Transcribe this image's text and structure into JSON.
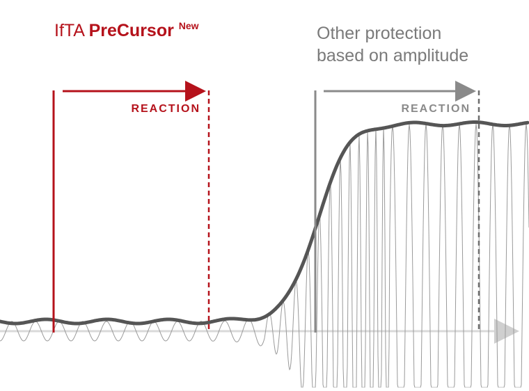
{
  "header_left": {
    "brand": "IfTA",
    "product": "PreCursor",
    "tag": "New"
  },
  "header_right": {
    "line1": "Other protection",
    "line2": "based on amplitude"
  },
  "reaction_left": {
    "label": "REACTION"
  },
  "reaction_right": {
    "label": "REACTION"
  },
  "colors": {
    "accent_red": "#b5121b",
    "gray_dark": "#555555",
    "gray_mid": "#8a8a8a",
    "gray_light": "#c8c8c8"
  }
}
